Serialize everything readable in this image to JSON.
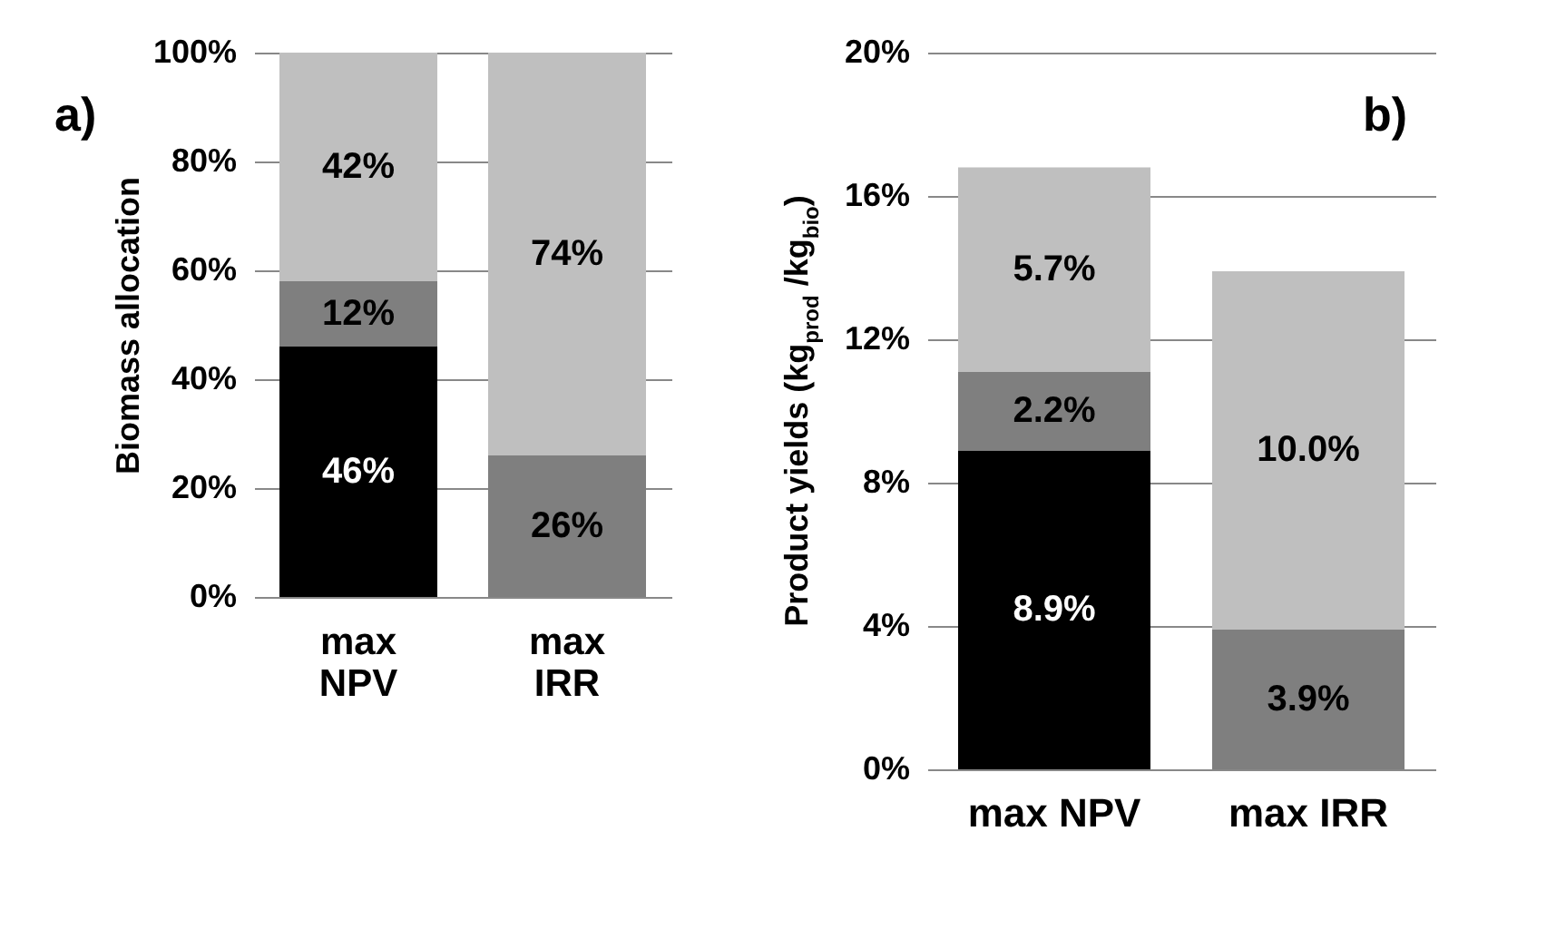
{
  "chart_data": [
    {
      "type": "bar",
      "stacked": true,
      "ylabel": "Biomass allocation",
      "categories": [
        "max NPV",
        "max IRR"
      ],
      "series": [
        {
          "color": "#000000",
          "values": [
            46,
            null
          ],
          "value_labels": [
            "46%",
            null
          ]
        },
        {
          "color": "#7f7f7f",
          "values": [
            12,
            26
          ],
          "value_labels": [
            "12%",
            "26%"
          ]
        },
        {
          "color": "#bfbfbf",
          "values": [
            42,
            74
          ],
          "value_labels": [
            "42%",
            "74%"
          ]
        }
      ],
      "ylim": [
        0,
        100
      ],
      "yticks": [
        {
          "value": 0,
          "label": "0%"
        },
        {
          "value": 20,
          "label": "20%"
        },
        {
          "value": 40,
          "label": "40%"
        },
        {
          "value": 60,
          "label": "60%"
        },
        {
          "value": 80,
          "label": "80%"
        },
        {
          "value": 100,
          "label": "100%"
        }
      ],
      "grid": "y",
      "annotations": [
        "a)"
      ]
    },
    {
      "type": "bar",
      "stacked": true,
      "ylabel": "Product yields (kg$_{prod}$ /kg$_{bio}$)",
      "categories": [
        "max NPV",
        "max IRR"
      ],
      "series": [
        {
          "color": "#000000",
          "values": [
            8.9,
            null
          ],
          "value_labels": [
            "8.9%",
            null
          ]
        },
        {
          "color": "#7f7f7f",
          "values": [
            2.2,
            3.9
          ],
          "value_labels": [
            "2.2%",
            "3.9%"
          ]
        },
        {
          "color": "#bfbfbf",
          "values": [
            5.7,
            10.0
          ],
          "value_labels": [
            "5.7%",
            "10.0%"
          ]
        }
      ],
      "ylim": [
        0,
        20
      ],
      "yticks": [
        {
          "value": 0,
          "label": "0%"
        },
        {
          "value": 4,
          "label": "4%"
        },
        {
          "value": 8,
          "label": "8%"
        },
        {
          "value": 12,
          "label": "12%"
        },
        {
          "value": 16,
          "label": "16%"
        },
        {
          "value": 20,
          "label": "20%"
        }
      ],
      "grid": "y",
      "annotations": [
        "b)"
      ]
    }
  ]
}
